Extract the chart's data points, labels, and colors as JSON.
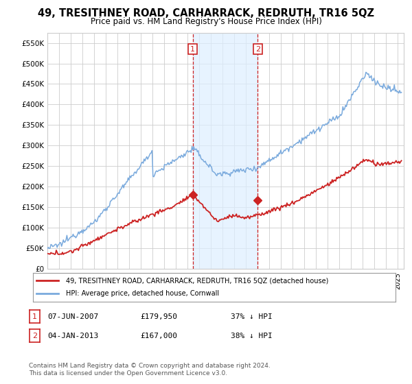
{
  "title": "49, TRESITHNEY ROAD, CARHARRACK, REDRUTH, TR16 5QZ",
  "subtitle": "Price paid vs. HM Land Registry's House Price Index (HPI)",
  "title_fontsize": 10.5,
  "subtitle_fontsize": 8.5,
  "ylim": [
    0,
    575000
  ],
  "yticks": [
    0,
    50000,
    100000,
    150000,
    200000,
    250000,
    300000,
    350000,
    400000,
    450000,
    500000,
    550000
  ],
  "ytick_labels": [
    "£0",
    "£50K",
    "£100K",
    "£150K",
    "£200K",
    "£250K",
    "£300K",
    "£350K",
    "£400K",
    "£450K",
    "£500K",
    "£550K"
  ],
  "hpi_color": "#7aaadd",
  "price_color": "#cc2222",
  "marker_color": "#cc2222",
  "vline_color": "#cc2222",
  "shade_color": "#ddeeff",
  "background_color": "#ffffff",
  "grid_color": "#cccccc",
  "legend_label_red": "49, TRESITHNEY ROAD, CARHARRACK, REDRUTH, TR16 5QZ (detached house)",
  "legend_label_blue": "HPI: Average price, detached house, Cornwall",
  "footnote": "Contains HM Land Registry data © Crown copyright and database right 2024.\nThis data is licensed under the Open Government Licence v3.0.",
  "transaction1_date": "07-JUN-2007",
  "transaction1_price": "£179,950",
  "transaction1_pct": "37% ↓ HPI",
  "transaction2_date": "04-JAN-2013",
  "transaction2_price": "£167,000",
  "transaction2_pct": "38% ↓ HPI",
  "sale1_year": 2007.44,
  "sale1_price": 179950,
  "sale2_year": 2013.01,
  "sale2_price": 167000,
  "xlim_start": 1995,
  "xlim_end": 2025.5
}
